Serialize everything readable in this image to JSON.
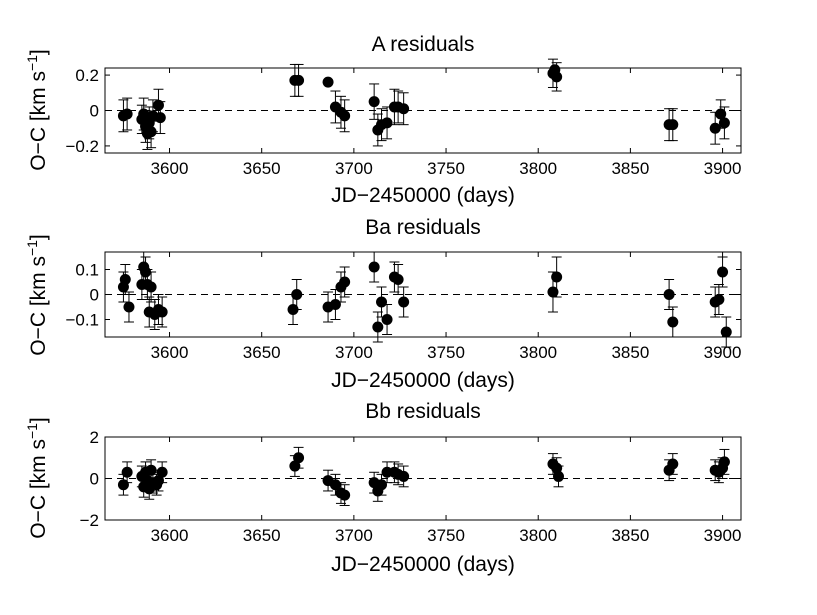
{
  "chart_data": [
    {
      "type": "scatter",
      "title": "A residuals",
      "xlabel": "JD−2450000 (days)",
      "ylabel": "O−C [km s",
      "ylabel_sup": "−1",
      "ylabel_close": "]",
      "xlim": [
        3565,
        3910
      ],
      "ylim": [
        -0.24,
        0.24
      ],
      "xticks": [
        3600,
        3650,
        3700,
        3750,
        3800,
        3850,
        3900
      ],
      "xtick_labels": [
        "3600",
        "3650",
        "3700",
        "3750",
        "3800",
        "3850",
        "3900"
      ],
      "yticks": [
        -0.2,
        0,
        0.2
      ],
      "ytick_labels": [
        "−0.2",
        "0",
        "0.2"
      ],
      "zero_line": "dashed",
      "series": [
        {
          "name": "A",
          "x": [
            3575,
            3577,
            3585,
            3586,
            3587,
            3588,
            3589,
            3590,
            3591,
            3594,
            3595,
            3668,
            3670,
            3686,
            3690,
            3693,
            3695,
            3711,
            3713,
            3715,
            3718,
            3722,
            3724,
            3727,
            3808,
            3809,
            3810,
            3871,
            3873,
            3896,
            3899,
            3901
          ],
          "y": [
            -0.03,
            -0.02,
            -0.05,
            -0.02,
            -0.09,
            -0.13,
            -0.07,
            -0.12,
            -0.03,
            0.03,
            -0.04,
            0.17,
            0.17,
            0.16,
            0.02,
            -0.01,
            -0.03,
            0.05,
            -0.11,
            -0.08,
            -0.07,
            0.02,
            0.02,
            0.01,
            0.21,
            0.23,
            0.19,
            -0.08,
            -0.08,
            -0.1,
            -0.02,
            -0.07
          ],
          "err": [
            0.09,
            0.09,
            0.08,
            0.09,
            0.09,
            0.09,
            0.09,
            0.09,
            0.09,
            0.09,
            0.09,
            0.09,
            0.09,
            0.0,
            0.09,
            0.09,
            0.09,
            0.1,
            0.09,
            0.09,
            0.09,
            0.1,
            0.09,
            0.09,
            0.08,
            0.0,
            0.08,
            0.09,
            0.09,
            0.09,
            0.08,
            0.09
          ]
        }
      ]
    },
    {
      "type": "scatter",
      "title": "Ba residuals",
      "xlabel": "JD−2450000 (days)",
      "ylabel": "O−C [km s",
      "ylabel_sup": "−1",
      "ylabel_close": "]",
      "xlim": [
        3565,
        3910
      ],
      "ylim": [
        -0.17,
        0.17
      ],
      "xticks": [
        3600,
        3650,
        3700,
        3750,
        3800,
        3850,
        3900
      ],
      "xtick_labels": [
        "3600",
        "3650",
        "3700",
        "3750",
        "3800",
        "3850",
        "3900"
      ],
      "yticks": [
        -0.1,
        0,
        0.1
      ],
      "ytick_labels": [
        "−0.1",
        "0",
        "0.1"
      ],
      "zero_line": "dashed",
      "series": [
        {
          "name": "Ba",
          "x": [
            3575,
            3576,
            3578,
            3585,
            3586,
            3587,
            3588,
            3589,
            3590,
            3592,
            3594,
            3596,
            3667,
            3669,
            3686,
            3690,
            3693,
            3695,
            3711,
            3713,
            3715,
            3718,
            3722,
            3724,
            3727,
            3808,
            3810,
            3871,
            3873,
            3896,
            3898,
            3900,
            3902
          ],
          "y": [
            0.03,
            0.06,
            -0.05,
            0.04,
            0.11,
            0.09,
            0.04,
            -0.07,
            0.03,
            -0.08,
            -0.06,
            -0.07,
            -0.06,
            0.0,
            -0.05,
            -0.04,
            0.03,
            0.05,
            0.11,
            -0.13,
            -0.03,
            -0.1,
            0.07,
            0.06,
            -0.03,
            0.01,
            0.07,
            0.0,
            -0.11,
            -0.03,
            -0.02,
            0.09,
            -0.15
          ],
          "err": [
            0.06,
            0.06,
            0.06,
            0.06,
            0.06,
            0.06,
            0.06,
            0.06,
            0.06,
            0.06,
            0.06,
            0.06,
            0.06,
            0.06,
            0.06,
            0.06,
            0.06,
            0.06,
            0.06,
            0.06,
            0.06,
            0.06,
            0.06,
            0.06,
            0.06,
            0.08,
            0.08,
            0.06,
            0.06,
            0.06,
            0.06,
            0.06,
            0.06
          ]
        }
      ]
    },
    {
      "type": "scatter",
      "title": "Bb residuals",
      "xlabel": "JD−2450000 (days)",
      "ylabel": "O−C [km s",
      "ylabel_sup": "−1",
      "ylabel_close": "]",
      "xlim": [
        3565,
        3910
      ],
      "ylim": [
        -2,
        2
      ],
      "xticks": [
        3600,
        3650,
        3700,
        3750,
        3800,
        3850,
        3900
      ],
      "xtick_labels": [
        "3600",
        "3650",
        "3700",
        "3750",
        "3800",
        "3850",
        "3900"
      ],
      "yticks": [
        -2,
        0,
        2
      ],
      "ytick_labels": [
        "−2",
        "0",
        "2"
      ],
      "zero_line": "dashed",
      "series": [
        {
          "name": "Bb",
          "x": [
            3575,
            3577,
            3585,
            3586,
            3587,
            3588,
            3589,
            3590,
            3591,
            3593,
            3594,
            3596,
            3668,
            3670,
            3686,
            3690,
            3693,
            3695,
            3711,
            3713,
            3715,
            3718,
            3722,
            3724,
            3727,
            3808,
            3810,
            3811,
            3871,
            3873,
            3896,
            3898,
            3900,
            3901
          ],
          "y": [
            -0.3,
            0.3,
            0.1,
            -0.4,
            0.3,
            -0.1,
            -0.5,
            0.4,
            -0.2,
            -0.3,
            -0.1,
            0.3,
            0.6,
            1.0,
            -0.1,
            -0.3,
            -0.7,
            -0.8,
            -0.2,
            -0.6,
            -0.3,
            0.3,
            0.3,
            0.2,
            0.1,
            0.7,
            0.5,
            0.1,
            0.4,
            0.7,
            0.4,
            0.3,
            0.5,
            0.8
          ],
          "err": [
            0.5,
            0.5,
            0.5,
            0.5,
            0.5,
            0.5,
            0.5,
            0.5,
            0.5,
            0.5,
            0.5,
            0.5,
            0.5,
            0.5,
            0.5,
            0.5,
            0.5,
            0.5,
            0.5,
            0.5,
            0.5,
            0.5,
            0.5,
            0.5,
            0.5,
            0.5,
            0.5,
            0.5,
            0.5,
            0.5,
            0.5,
            0.5,
            0.5,
            0.6
          ]
        }
      ]
    }
  ]
}
